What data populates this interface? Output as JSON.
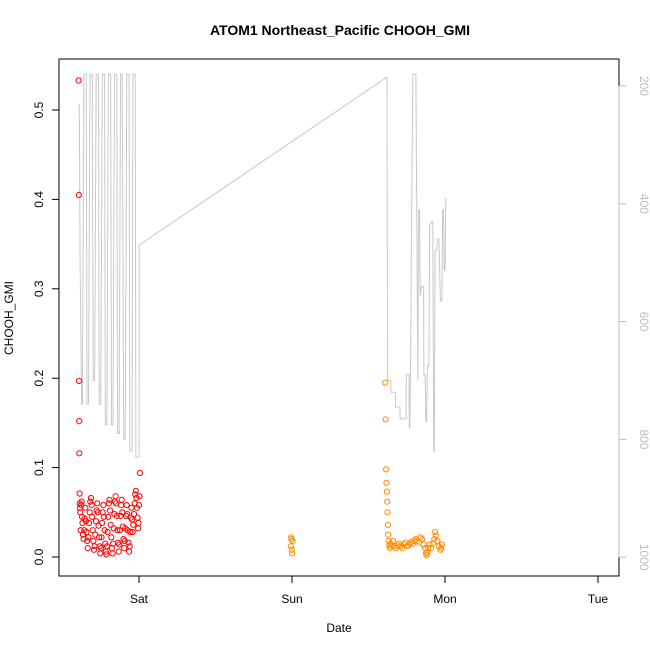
{
  "chart_data": {
    "type": "scatter",
    "title": "ATOM1 Northeast_Pacific CHOOH_GMI",
    "xlabel": "Date",
    "ylabel": "CHOOH_GMI",
    "x_ticks": [
      "Sat",
      "Sun",
      "Mon",
      "Tue"
    ],
    "x_units": "days (0 = Sat 00:00)",
    "xlim": [
      -0.45,
      3.08
    ],
    "ylim": [
      -0.02,
      0.55
    ],
    "y_ticks": [
      0.0,
      0.1,
      0.2,
      0.3,
      0.4,
      0.5
    ],
    "y2_ticks": [
      200,
      400,
      600,
      800,
      1000
    ],
    "y2lim": [
      1000,
      170
    ],
    "grid": false,
    "legend": "none",
    "colors": {
      "series1": "#ff0000",
      "series2": "#ff8c00",
      "pressure": "#c8c8c8",
      "right_axis": "#bdbdbd"
    },
    "series": [
      {
        "color": "#ff0000",
        "points": [
          [
            -0.395,
            0.533
          ],
          [
            -0.393,
            0.405
          ],
          [
            -0.392,
            0.197
          ],
          [
            -0.391,
            0.152
          ],
          [
            -0.39,
            0.116
          ],
          [
            -0.388,
            0.071
          ],
          [
            -0.387,
            0.06
          ],
          [
            -0.386,
            0.055
          ],
          [
            -0.384,
            0.05
          ],
          [
            -0.382,
            0.03
          ],
          [
            -0.378,
            0.058
          ],
          [
            -0.375,
            0.062
          ],
          [
            -0.372,
            0.045
          ],
          [
            -0.369,
            0.038
          ],
          [
            -0.366,
            0.025
          ],
          [
            -0.362,
            0.02
          ],
          [
            -0.358,
            0.03
          ],
          [
            -0.355,
            0.043
          ],
          [
            -0.351,
            0.055
          ],
          [
            -0.347,
            0.04
          ],
          [
            -0.343,
            0.028
          ],
          [
            -0.339,
            0.018
          ],
          [
            -0.335,
            0.01
          ],
          [
            -0.331,
            0.022
          ],
          [
            -0.327,
            0.038
          ],
          [
            -0.322,
            0.05
          ],
          [
            -0.318,
            0.062
          ],
          [
            -0.314,
            0.066
          ],
          [
            -0.31,
            0.058
          ],
          [
            -0.306,
            0.045
          ],
          [
            -0.302,
            0.03
          ],
          [
            -0.298,
            0.018
          ],
          [
            -0.294,
            0.008
          ],
          [
            -0.29,
            0.012
          ],
          [
            -0.286,
            0.025
          ],
          [
            -0.281,
            0.04
          ],
          [
            -0.277,
            0.052
          ],
          [
            -0.273,
            0.06
          ],
          [
            -0.269,
            0.05
          ],
          [
            -0.265,
            0.035
          ],
          [
            -0.261,
            0.022
          ],
          [
            -0.257,
            0.012
          ],
          [
            -0.253,
            0.004
          ],
          [
            -0.249,
            0.01
          ],
          [
            -0.245,
            0.022
          ],
          [
            -0.241,
            0.038
          ],
          [
            -0.237,
            0.05
          ],
          [
            -0.233,
            0.058
          ],
          [
            -0.229,
            0.045
          ],
          [
            -0.225,
            0.03
          ],
          [
            -0.221,
            0.015
          ],
          [
            -0.217,
            0.006
          ],
          [
            -0.213,
            0.003
          ],
          [
            -0.209,
            0.012
          ],
          [
            -0.205,
            0.028
          ],
          [
            -0.201,
            0.045
          ],
          [
            -0.197,
            0.06
          ],
          [
            -0.193,
            0.064
          ],
          [
            -0.189,
            0.052
          ],
          [
            -0.185,
            0.036
          ],
          [
            -0.181,
            0.022
          ],
          [
            -0.177,
            0.01
          ],
          [
            -0.173,
            0.004
          ],
          [
            -0.169,
            0.015
          ],
          [
            -0.165,
            0.032
          ],
          [
            -0.161,
            0.048
          ],
          [
            -0.157,
            0.062
          ],
          [
            -0.153,
            0.068
          ],
          [
            -0.149,
            0.06
          ],
          [
            -0.145,
            0.046
          ],
          [
            -0.141,
            0.03
          ],
          [
            -0.137,
            0.016
          ],
          [
            -0.133,
            0.006
          ],
          [
            -0.129,
            0.014
          ],
          [
            -0.125,
            0.03
          ],
          [
            -0.121,
            0.046
          ],
          [
            -0.117,
            0.058
          ],
          [
            -0.113,
            0.064
          ],
          [
            -0.109,
            0.05
          ],
          [
            -0.105,
            0.034
          ],
          [
            -0.101,
            0.02
          ],
          [
            -0.097,
            0.01
          ],
          [
            -0.093,
            0.018
          ],
          [
            -0.089,
            0.032
          ],
          [
            -0.085,
            0.046
          ],
          [
            -0.081,
            0.058
          ],
          [
            -0.077,
            0.048
          ],
          [
            -0.073,
            0.03
          ],
          [
            -0.069,
            0.016
          ],
          [
            -0.065,
            0.006
          ],
          [
            -0.061,
            0.012
          ],
          [
            -0.057,
            0.028
          ],
          [
            -0.053,
            0.044
          ],
          [
            -0.049,
            0.055
          ],
          [
            -0.045,
            0.042
          ],
          [
            -0.041,
            0.028
          ],
          [
            -0.037,
            0.036
          ],
          [
            -0.033,
            0.048
          ],
          [
            -0.029,
            0.06
          ],
          [
            -0.025,
            0.07
          ],
          [
            -0.021,
            0.074
          ],
          [
            -0.017,
            0.066
          ],
          [
            -0.013,
            0.055
          ],
          [
            -0.009,
            0.044
          ],
          [
            -0.006,
            0.032
          ],
          [
            -0.003,
            0.038
          ],
          [
            0.0,
            0.058
          ],
          [
            0.003,
            0.068
          ],
          [
            0.006,
            0.094
          ]
        ]
      },
      {
        "color": "#ff8c00",
        "points": [
          [
            0.993,
            0.012
          ],
          [
            0.995,
            0.022
          ],
          [
            0.997,
            0.02
          ],
          [
            0.999,
            0.008
          ],
          [
            1.001,
            0.004
          ],
          [
            1.003,
            0.018
          ],
          [
            1.61,
            0.195
          ],
          [
            1.612,
            0.154
          ],
          [
            1.615,
            0.098
          ],
          [
            1.617,
            0.083
          ],
          [
            1.62,
            0.073
          ],
          [
            1.622,
            0.062
          ],
          [
            1.624,
            0.05
          ],
          [
            1.627,
            0.036
          ],
          [
            1.629,
            0.025
          ],
          [
            1.632,
            0.018
          ],
          [
            1.636,
            0.013
          ],
          [
            1.64,
            0.01
          ],
          [
            1.645,
            0.015
          ],
          [
            1.65,
            0.012
          ],
          [
            1.66,
            0.018
          ],
          [
            1.67,
            0.012
          ],
          [
            1.68,
            0.01
          ],
          [
            1.69,
            0.013
          ],
          [
            1.7,
            0.015
          ],
          [
            1.71,
            0.012
          ],
          [
            1.72,
            0.01
          ],
          [
            1.73,
            0.014
          ],
          [
            1.74,
            0.016
          ],
          [
            1.75,
            0.012
          ],
          [
            1.76,
            0.013
          ],
          [
            1.77,
            0.015
          ],
          [
            1.78,
            0.017
          ],
          [
            1.79,
            0.015
          ],
          [
            1.8,
            0.018
          ],
          [
            1.81,
            0.02
          ],
          [
            1.82,
            0.018
          ],
          [
            1.83,
            0.016
          ],
          [
            1.84,
            0.022
          ],
          [
            1.85,
            0.02
          ],
          [
            1.86,
            0.014
          ],
          [
            1.87,
            0.01
          ],
          [
            1.875,
            0.004
          ],
          [
            1.88,
            0.002
          ],
          [
            1.885,
            0.005
          ],
          [
            1.89,
            0.01
          ],
          [
            1.9,
            0.014
          ],
          [
            1.91,
            0.01
          ],
          [
            1.92,
            0.015
          ],
          [
            1.93,
            0.02
          ],
          [
            1.935,
            0.028
          ],
          [
            1.94,
            0.024
          ],
          [
            1.95,
            0.018
          ],
          [
            1.96,
            0.012
          ],
          [
            1.97,
            0.008
          ],
          [
            1.975,
            0.01
          ],
          [
            1.98,
            0.014
          ]
        ]
      }
    ],
    "pressure_line": {
      "color": "#c8c8c8",
      "axis": "right",
      "points": [
        [
          -0.39,
          230
        ],
        [
          -0.385,
          500
        ],
        [
          -0.375,
          740
        ],
        [
          -0.37,
          740
        ],
        [
          -0.36,
          180
        ],
        [
          -0.345,
          180
        ],
        [
          -0.34,
          740
        ],
        [
          -0.33,
          740
        ],
        [
          -0.32,
          180
        ],
        [
          -0.305,
          180
        ],
        [
          -0.3,
          700
        ],
        [
          -0.29,
          700
        ],
        [
          -0.28,
          180
        ],
        [
          -0.265,
          180
        ],
        [
          -0.26,
          740
        ],
        [
          -0.25,
          740
        ],
        [
          -0.24,
          180
        ],
        [
          -0.225,
          180
        ],
        [
          -0.22,
          775
        ],
        [
          -0.21,
          775
        ],
        [
          -0.2,
          180
        ],
        [
          -0.185,
          180
        ],
        [
          -0.18,
          775
        ],
        [
          -0.17,
          775
        ],
        [
          -0.16,
          180
        ],
        [
          -0.145,
          180
        ],
        [
          -0.14,
          790
        ],
        [
          -0.13,
          790
        ],
        [
          -0.12,
          180
        ],
        [
          -0.11,
          180
        ],
        [
          -0.1,
          800
        ],
        [
          -0.09,
          800
        ],
        [
          -0.08,
          180
        ],
        [
          -0.065,
          180
        ],
        [
          -0.06,
          820
        ],
        [
          -0.045,
          820
        ],
        [
          -0.04,
          180
        ],
        [
          -0.025,
          180
        ],
        [
          -0.02,
          830
        ],
        [
          -0.012,
          830
        ],
        [
          0.0,
          830
        ],
        [
          0.002,
          470
        ],
        [
          1.62,
          185
        ],
        [
          1.625,
          700
        ],
        [
          1.62,
          700
        ],
        [
          1.63,
          700
        ],
        [
          1.645,
          700
        ],
        [
          1.647,
          720
        ],
        [
          1.66,
          720
        ],
        [
          1.675,
          720
        ],
        [
          1.677,
          745
        ],
        [
          1.7,
          745
        ],
        [
          1.705,
          745
        ],
        [
          1.707,
          765
        ],
        [
          1.745,
          765
        ],
        [
          1.747,
          690
        ],
        [
          1.75,
          690
        ],
        [
          1.765,
          690
        ],
        [
          1.767,
          780
        ],
        [
          1.77,
          780
        ],
        [
          1.775,
          670
        ],
        [
          1.78,
          480
        ],
        [
          1.79,
          180
        ],
        [
          1.8,
          180
        ],
        [
          1.81,
          180
        ],
        [
          1.822,
          700
        ],
        [
          1.828,
          410
        ],
        [
          1.834,
          410
        ],
        [
          1.838,
          555
        ],
        [
          1.84,
          555
        ],
        [
          1.845,
          540
        ],
        [
          1.86,
          540
        ],
        [
          1.862,
          690
        ],
        [
          1.87,
          690
        ],
        [
          1.875,
          770
        ],
        [
          1.88,
          770
        ],
        [
          1.885,
          675
        ],
        [
          1.895,
          675
        ],
        [
          1.9,
          435
        ],
        [
          1.905,
          435
        ],
        [
          1.915,
          430
        ],
        [
          1.92,
          430
        ],
        [
          1.926,
          820
        ],
        [
          1.93,
          820
        ],
        [
          1.935,
          480
        ],
        [
          1.945,
          480
        ],
        [
          1.95,
          460
        ],
        [
          1.96,
          460
        ],
        [
          1.97,
          565
        ],
        [
          1.98,
          565
        ],
        [
          1.985,
          410
        ],
        [
          1.99,
          410
        ],
        [
          1.995,
          510
        ],
        [
          2.0,
          515
        ],
        [
          2.005,
          390
        ]
      ]
    }
  }
}
